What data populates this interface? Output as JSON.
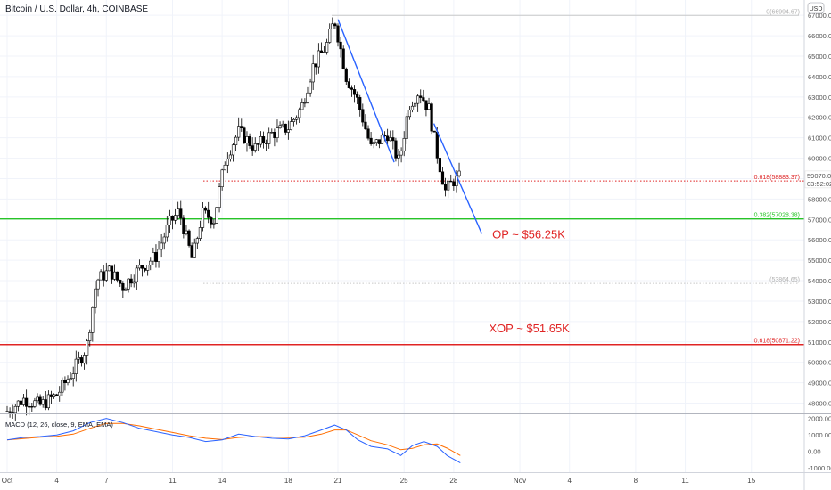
{
  "chart_data": {
    "type": "candlestick",
    "title": "Bitcoin / U.S. Dollar, 4h, COINBASE",
    "currency_badge": "USD",
    "y_axis": {
      "range": [
        47500,
        67400
      ],
      "ticks": [
        "67000.00",
        "66000.00",
        "65000.00",
        "64000.00",
        "63000.00",
        "62000.00",
        "61000.00",
        "60000.00",
        "59000.00",
        "58000.00",
        "57000.00",
        "56000.00",
        "55000.00",
        "54000.00",
        "53000.00",
        "52000.00",
        "51000.00",
        "50000.00",
        "49000.00",
        "48000.00"
      ]
    },
    "x_axis": {
      "labels": [
        {
          "label": "Oct",
          "day": 1
        },
        {
          "label": "4",
          "day": 4
        },
        {
          "label": "7",
          "day": 7
        },
        {
          "label": "11",
          "day": 11
        },
        {
          "label": "14",
          "day": 14
        },
        {
          "label": "18",
          "day": 18
        },
        {
          "label": "21",
          "day": 21
        },
        {
          "label": "25",
          "day": 25
        },
        {
          "label": "28",
          "day": 28
        },
        {
          "label": "Nov",
          "day": 32
        },
        {
          "label": "4",
          "day": 35
        },
        {
          "label": "8",
          "day": 39
        },
        {
          "label": "11",
          "day": 42
        },
        {
          "label": "15",
          "day": 46
        }
      ]
    },
    "price_series_key_points": [
      {
        "day": 1.0,
        "price": 47600
      },
      {
        "day": 2.0,
        "price": 48200
      },
      {
        "day": 3.0,
        "price": 47900
      },
      {
        "day": 4.0,
        "price": 48400
      },
      {
        "day": 5.0,
        "price": 49600
      },
      {
        "day": 5.8,
        "price": 50700
      },
      {
        "day": 6.4,
        "price": 54000
      },
      {
        "day": 7.2,
        "price": 54500
      },
      {
        "day": 8.0,
        "price": 53700
      },
      {
        "day": 9.0,
        "price": 54600
      },
      {
        "day": 10.0,
        "price": 55200
      },
      {
        "day": 10.8,
        "price": 56800
      },
      {
        "day": 11.4,
        "price": 57400
      },
      {
        "day": 12.2,
        "price": 55000
      },
      {
        "day": 12.8,
        "price": 57300
      },
      {
        "day": 13.5,
        "price": 57000
      },
      {
        "day": 14.2,
        "price": 60000
      },
      {
        "day": 15.0,
        "price": 61300
      },
      {
        "day": 16.0,
        "price": 60500
      },
      {
        "day": 17.0,
        "price": 61200
      },
      {
        "day": 18.0,
        "price": 61500
      },
      {
        "day": 18.8,
        "price": 62500
      },
      {
        "day": 19.5,
        "price": 64500
      },
      {
        "day": 20.3,
        "price": 65500
      },
      {
        "day": 20.8,
        "price": 66800
      },
      {
        "day": 21.5,
        "price": 64000
      },
      {
        "day": 22.2,
        "price": 62800
      },
      {
        "day": 23.0,
        "price": 60500
      },
      {
        "day": 24.0,
        "price": 61200
      },
      {
        "day": 24.7,
        "price": 59800
      },
      {
        "day": 25.3,
        "price": 62600
      },
      {
        "day": 25.9,
        "price": 63300
      },
      {
        "day": 26.5,
        "price": 62400
      },
      {
        "day": 27.0,
        "price": 60200
      },
      {
        "day": 27.5,
        "price": 58400
      },
      {
        "day": 28.0,
        "price": 58900
      },
      {
        "day": 28.4,
        "price": 59070
      }
    ],
    "current_price": {
      "price": 59070.01,
      "label": "59070.01",
      "countdown": "03:52:02"
    },
    "fib_levels": [
      {
        "label": "0(66994.67)",
        "price": 66994.67,
        "style": "solid",
        "color": "#c8c8c8"
      },
      {
        "label": "0.618(58883.37)",
        "price": 58883.37,
        "style": "dotted",
        "color": "#e02424"
      },
      {
        "label": "0.382(57028.38)",
        "price": 57028.38,
        "style": "solid",
        "color": "#27c427"
      },
      {
        "label": "(53864.65)",
        "price": 53864.65,
        "style": "dotted",
        "color": "#c8c8c8"
      },
      {
        "label": "0.618(50871.22)",
        "price": 50871.22,
        "style": "solid",
        "color": "#e02424"
      }
    ],
    "trendlines": [
      {
        "from": {
          "day": 21.0,
          "price": 66800
        },
        "to": {
          "day": 24.4,
          "price": 59800
        }
      },
      {
        "from": {
          "day": 26.8,
          "price": 61700
        },
        "to": {
          "day": 29.7,
          "price": 56300
        }
      }
    ],
    "annotations": [
      {
        "text": "OP ~ $56.25K",
        "day": 29.9,
        "price": 56250
      },
      {
        "text": "XOP ~ $51.65K",
        "day": 29.7,
        "price": 51650
      }
    ],
    "macd": {
      "label": "MACD (12, 26, close, 9, EMA, EMA)",
      "range": [
        -1100,
        2200
      ],
      "ticks": [
        "2000.00",
        "1000.00",
        "0.00",
        "-1000.00"
      ],
      "macd_line": [
        [
          1,
          700
        ],
        [
          2,
          850
        ],
        [
          3,
          900
        ],
        [
          4,
          1000
        ],
        [
          5,
          1250
        ],
        [
          6,
          1750
        ],
        [
          7,
          2000
        ],
        [
          8,
          1750
        ],
        [
          9,
          1400
        ],
        [
          10,
          1200
        ],
        [
          11,
          1000
        ],
        [
          12,
          850
        ],
        [
          13,
          600
        ],
        [
          14,
          700
        ],
        [
          15,
          1050
        ],
        [
          16,
          900
        ],
        [
          17,
          800
        ],
        [
          18,
          750
        ],
        [
          19,
          950
        ],
        [
          20,
          1300
        ],
        [
          20.8,
          1600
        ],
        [
          21.5,
          1300
        ],
        [
          22.2,
          700
        ],
        [
          23,
          300
        ],
        [
          24,
          150
        ],
        [
          24.8,
          -250
        ],
        [
          25.5,
          350
        ],
        [
          26.2,
          600
        ],
        [
          27,
          300
        ],
        [
          27.6,
          -250
        ],
        [
          28.4,
          -700
        ]
      ],
      "signal_line": [
        [
          1,
          700
        ],
        [
          2,
          780
        ],
        [
          3,
          860
        ],
        [
          4,
          920
        ],
        [
          5,
          1050
        ],
        [
          6,
          1400
        ],
        [
          7,
          1700
        ],
        [
          8,
          1700
        ],
        [
          9,
          1550
        ],
        [
          10,
          1350
        ],
        [
          11,
          1150
        ],
        [
          12,
          950
        ],
        [
          13,
          800
        ],
        [
          14,
          720
        ],
        [
          15,
          850
        ],
        [
          16,
          900
        ],
        [
          17,
          880
        ],
        [
          18,
          830
        ],
        [
          19,
          860
        ],
        [
          20,
          1050
        ],
        [
          20.8,
          1300
        ],
        [
          21.5,
          1300
        ],
        [
          22.2,
          1000
        ],
        [
          23,
          650
        ],
        [
          24,
          400
        ],
        [
          24.8,
          100
        ],
        [
          25.5,
          180
        ],
        [
          26.2,
          400
        ],
        [
          27,
          450
        ],
        [
          27.6,
          200
        ],
        [
          28.4,
          -250
        ]
      ]
    },
    "colors": {
      "macd": "#2962ff",
      "signal": "#ff6d00",
      "trendline": "#2962ff",
      "annotation": "#e02424",
      "up": "#ffffff",
      "down": "#000000"
    }
  }
}
